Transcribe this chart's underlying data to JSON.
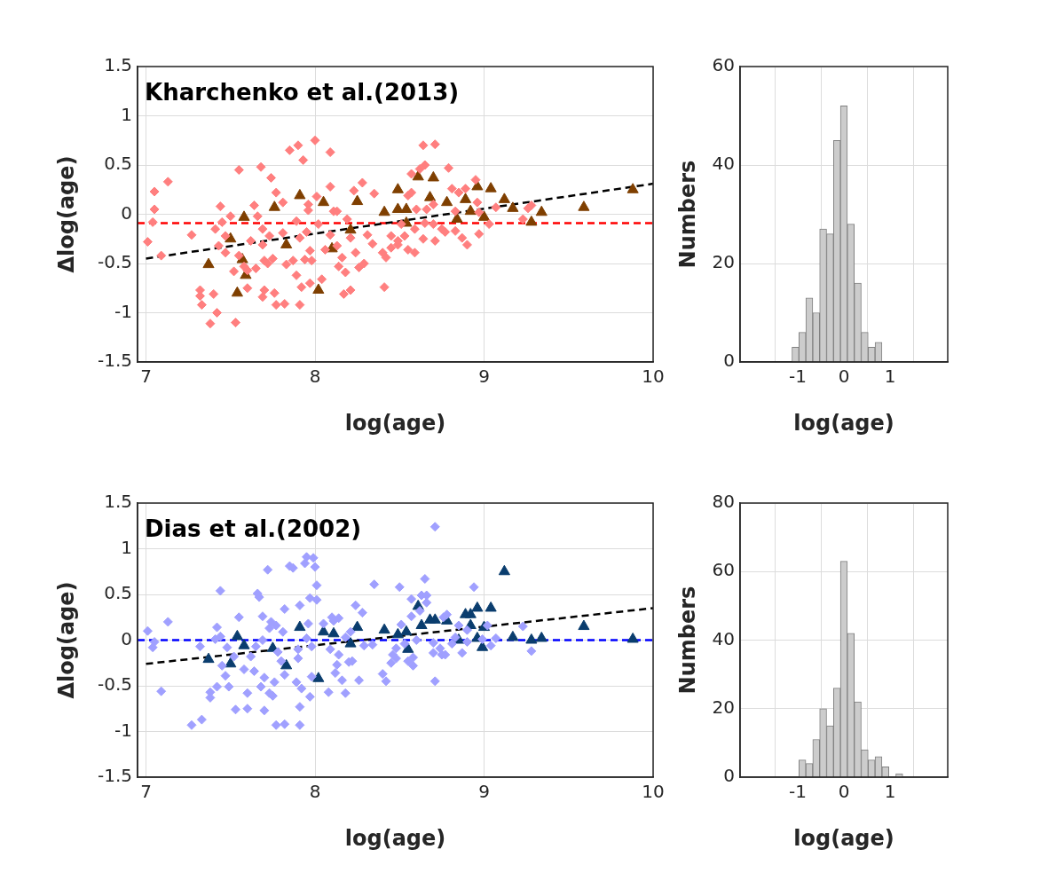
{
  "chart_data": [
    {
      "type": "scatter",
      "title": "Kharchenko et al.(2013)",
      "xlabel": "log(age)",
      "ylabel": "Δlog(age)",
      "xlim": [
        6.95,
        10
      ],
      "xticks": [
        7,
        8,
        9,
        10
      ],
      "ylim": [
        -1.5,
        1.5
      ],
      "yticks": [
        -1.5,
        -1,
        -0.5,
        0,
        0.5,
        1,
        1.5
      ],
      "grid": true,
      "series": [
        {
          "color": "#ff7f7f",
          "marker": "diamond",
          "x": [
            7.01,
            7.04,
            7.05,
            7.05,
            7.09,
            7.13,
            7.27,
            7.32,
            7.32,
            7.33,
            7.38,
            7.4,
            7.42,
            7.41,
            7.44,
            7.43,
            7.45,
            7.47,
            7.47,
            7.5,
            7.52,
            7.53,
            7.55,
            7.55,
            7.58,
            7.6,
            7.6,
            7.62,
            7.64,
            7.65,
            7.66,
            7.68,
            7.69,
            7.69,
            7.7,
            7.7,
            7.69,
            7.72,
            7.73,
            7.74,
            7.75,
            7.76,
            7.77,
            7.77,
            7.81,
            7.81,
            7.82,
            7.83,
            7.85,
            7.87,
            7.89,
            7.89,
            7.9,
            7.91,
            7.91,
            7.92,
            7.93,
            7.94,
            7.95,
            7.96,
            7.96,
            7.97,
            7.97,
            7.98,
            8.0,
            8.01,
            8.02,
            8.04,
            8.06,
            8.09,
            8.09,
            8.09,
            8.11,
            8.13,
            8.13,
            8.14,
            8.16,
            8.17,
            8.18,
            8.19,
            8.21,
            8.21,
            8.23,
            8.24,
            8.26,
            8.28,
            8.29,
            8.31,
            8.34,
            8.35,
            8.4,
            8.41,
            8.42,
            8.45,
            8.45,
            8.49,
            8.49,
            8.51,
            8.53,
            8.55,
            8.55,
            8.57,
            8.57,
            8.59,
            8.59,
            8.6,
            8.62,
            8.64,
            8.64,
            8.65,
            8.65,
            8.66,
            8.7,
            8.71,
            8.71,
            8.7,
            8.75,
            8.77,
            8.79,
            8.81,
            8.83,
            8.83,
            8.85,
            8.87,
            8.89,
            8.9,
            8.95,
            8.96,
            8.97,
            8.97,
            9.03,
            9.07,
            9.23,
            9.26,
            9.28
          ],
          "values": [
            -0.28,
            -0.08,
            0.05,
            0.23,
            -0.42,
            0.33,
            -0.21,
            -0.77,
            -0.83,
            -0.92,
            -1.11,
            -0.81,
            -1.0,
            -0.15,
            0.08,
            -0.32,
            -0.08,
            -0.39,
            -0.22,
            -0.02,
            -0.58,
            -1.1,
            0.45,
            -0.42,
            -0.53,
            -0.75,
            -0.57,
            -0.27,
            0.09,
            -0.55,
            -0.02,
            0.48,
            -0.15,
            -0.31,
            -0.47,
            -0.77,
            -0.84,
            -0.5,
            -0.22,
            0.37,
            -0.45,
            -0.8,
            -0.92,
            0.22,
            -0.19,
            0.12,
            -0.91,
            -0.51,
            0.65,
            -0.47,
            -0.62,
            -0.07,
            0.7,
            -0.92,
            -0.24,
            -0.74,
            0.55,
            -0.46,
            -0.18,
            0.1,
            0.04,
            -0.7,
            -0.37,
            -0.47,
            0.75,
            0.18,
            -0.1,
            -0.66,
            -0.36,
            0.63,
            0.28,
            -0.21,
            0.03,
            -0.32,
            0.03,
            -0.53,
            -0.44,
            -0.81,
            -0.59,
            -0.05,
            -0.77,
            -0.24,
            0.24,
            -0.39,
            -0.54,
            0.32,
            -0.5,
            -0.21,
            -0.3,
            0.21,
            -0.39,
            -0.74,
            -0.44,
            -0.22,
            -0.34,
            -0.31,
            -0.27,
            -0.1,
            -0.22,
            -0.36,
            0.19,
            0.22,
            0.41,
            -0.15,
            -0.39,
            0.05,
            0.46,
            0.7,
            -0.25,
            -0.09,
            0.5,
            0.05,
            -0.1,
            0.71,
            -0.27,
            0.1,
            -0.15,
            -0.18,
            0.47,
            0.26,
            0.03,
            -0.17,
            0.22,
            -0.24,
            0.26,
            -0.31,
            0.35,
            0.12,
            0.02,
            -0.2,
            -0.1,
            0.07,
            -0.05,
            0.06,
            0.09
          ]
        },
        {
          "color": "#7f3f00",
          "marker": "triangle",
          "x": [
            7.37,
            7.5,
            7.54,
            7.57,
            7.58,
            7.59,
            7.76,
            7.83,
            7.91,
            8.02,
            8.05,
            8.1,
            8.21,
            8.25,
            8.41,
            8.49,
            8.49,
            8.54,
            8.54,
            8.61,
            8.7,
            8.68,
            8.78,
            8.84,
            8.89,
            8.96,
            8.92,
            9.0,
            9.04,
            9.12,
            9.17,
            9.28,
            9.34,
            9.59,
            9.88
          ],
          "values": [
            -0.51,
            -0.25,
            -0.8,
            -0.46,
            -0.03,
            -0.62,
            0.07,
            -0.31,
            0.19,
            -0.77,
            0.12,
            -0.35,
            -0.16,
            0.13,
            0.02,
            0.25,
            0.05,
            0.05,
            -0.09,
            0.38,
            0.37,
            0.17,
            0.12,
            -0.05,
            0.15,
            0.28,
            0.03,
            -0.03,
            0.26,
            0.15,
            0.06,
            -0.08,
            0.02,
            0.07,
            0.25
          ]
        },
        {
          "type": "line",
          "color": "#000000",
          "marker": "none",
          "line_style": "dashed",
          "x": [
            7,
            10
          ],
          "values": [
            -0.45,
            0.31
          ]
        }
      ],
      "ref_lines": [
        {
          "axis": "y",
          "value": -0.09,
          "color": "#ff0000",
          "line_style": "dashed"
        }
      ]
    },
    {
      "type": "histogram",
      "xlabel": "log(age)",
      "ylabel": "Numbers",
      "xlim": [
        -1.5,
        1.5
      ],
      "xticks": [
        -1,
        0,
        1
      ],
      "ylim": [
        0,
        60
      ],
      "yticks": [
        0,
        20,
        40,
        60
      ],
      "grid": true,
      "color": "#cccccc",
      "bins": [
        -1.125,
        -0.975,
        -0.825,
        -0.675,
        -0.525,
        -0.375,
        -0.225,
        -0.075,
        0.075,
        0.225,
        0.375,
        0.525,
        0.675,
        0.825
      ],
      "values": [
        3,
        6,
        13,
        10,
        27,
        26,
        45,
        52,
        28,
        16,
        6,
        3,
        4
      ]
    },
    {
      "type": "scatter",
      "title": "Dias et al.(2002)",
      "xlabel": "log(age)",
      "ylabel": "Δlog(age)",
      "xlim": [
        6.95,
        10
      ],
      "xticks": [
        7,
        8,
        9,
        10
      ],
      "ylim": [
        -1.5,
        1.5
      ],
      "yticks": [
        -1.5,
        -1,
        -0.5,
        0,
        0.5,
        1,
        1.5
      ],
      "grid": true,
      "series": [
        {
          "color": "#a0a0ff",
          "marker": "diamond",
          "x": [
            7.01,
            7.04,
            7.05,
            7.09,
            7.13,
            7.27,
            7.33,
            7.32,
            7.38,
            7.38,
            7.41,
            7.42,
            7.42,
            7.44,
            7.44,
            7.45,
            7.47,
            7.48,
            7.49,
            7.52,
            7.53,
            7.55,
            7.58,
            7.6,
            7.6,
            7.62,
            7.64,
            7.65,
            7.66,
            7.67,
            7.68,
            7.69,
            7.69,
            7.7,
            7.7,
            7.72,
            7.73,
            7.73,
            7.75,
            7.74,
            7.76,
            7.77,
            7.77,
            7.78,
            7.8,
            7.81,
            7.82,
            7.82,
            7.82,
            7.85,
            7.87,
            7.89,
            7.9,
            7.9,
            7.91,
            7.91,
            7.91,
            7.92,
            7.94,
            7.95,
            7.95,
            7.96,
            7.97,
            7.97,
            7.98,
            7.99,
            8.0,
            8.01,
            8.01,
            7.98,
            8.05,
            8.08,
            8.09,
            8.1,
            8.11,
            8.12,
            8.13,
            8.14,
            8.14,
            8.16,
            8.18,
            8.18,
            8.2,
            8.21,
            8.22,
            8.24,
            8.26,
            8.28,
            8.29,
            8.34,
            8.35,
            8.4,
            8.42,
            8.45,
            8.46,
            8.48,
            8.48,
            8.5,
            8.51,
            8.53,
            8.55,
            8.57,
            8.57,
            8.58,
            8.58,
            8.6,
            8.62,
            8.63,
            8.65,
            8.66,
            8.66,
            8.7,
            8.7,
            8.71,
            8.71,
            8.74,
            8.75,
            8.76,
            8.77,
            8.78,
            8.81,
            8.83,
            8.85,
            8.87,
            8.9,
            8.9,
            8.94,
            8.99,
            9.02,
            9.04,
            9.07,
            9.23,
            9.28
          ],
          "values": [
            0.1,
            -0.08,
            -0.02,
            -0.56,
            0.2,
            -0.93,
            -0.87,
            -0.07,
            -0.63,
            -0.57,
            0.01,
            -0.51,
            0.14,
            0.54,
            0.04,
            -0.28,
            -0.39,
            -0.08,
            -0.51,
            -0.18,
            -0.76,
            0.25,
            -0.32,
            -0.75,
            -0.58,
            -0.18,
            -0.34,
            -0.07,
            0.51,
            0.47,
            -0.51,
            0.26,
            0.0,
            -0.77,
            -0.41,
            0.77,
            -0.58,
            0.13,
            -0.61,
            0.2,
            -0.46,
            -0.93,
            0.16,
            -0.13,
            -0.23,
            0.09,
            -0.38,
            0.34,
            -0.92,
            0.81,
            0.79,
            -0.46,
            -0.1,
            -0.2,
            0.38,
            -0.93,
            -0.73,
            -0.53,
            0.84,
            0.91,
            0.02,
            0.18,
            -0.62,
            0.46,
            -0.07,
            0.9,
            0.8,
            0.6,
            0.44,
            -0.4,
            0.18,
            -0.57,
            -0.1,
            0.25,
            0.21,
            -0.36,
            -0.27,
            -0.16,
            0.24,
            -0.44,
            -0.58,
            0.03,
            -0.24,
            0.09,
            -0.23,
            0.38,
            -0.44,
            0.3,
            -0.06,
            -0.05,
            0.61,
            -0.37,
            -0.45,
            -0.25,
            -0.16,
            -0.09,
            -0.2,
            0.58,
            0.17,
            -0.04,
            -0.23,
            0.45,
            0.26,
            -0.28,
            -0.19,
            0.0,
            0.32,
            0.49,
            0.67,
            0.49,
            0.41,
            -0.03,
            -0.14,
            -0.45,
            1.24,
            -0.09,
            -0.16,
            0.25,
            -0.16,
            0.28,
            -0.04,
            0.03,
            0.16,
            -0.14,
            -0.02,
            0.11,
            0.58,
            0.01,
            0.16,
            -0.06,
            0.02,
            0.15,
            -0.12
          ]
        },
        {
          "color": "#0a3d6e",
          "marker": "triangle",
          "x": [
            7.37,
            7.5,
            7.54,
            7.58,
            7.75,
            7.83,
            7.91,
            8.02,
            8.05,
            8.11,
            8.21,
            8.25,
            8.41,
            8.49,
            8.54,
            8.55,
            8.61,
            8.63,
            8.68,
            8.71,
            8.78,
            8.85,
            8.89,
            8.92,
            8.92,
            8.96,
            8.96,
            9.0,
            8.99,
            9.04,
            9.12,
            9.17,
            9.28,
            9.34,
            9.59,
            9.88
          ],
          "values": [
            -0.21,
            -0.26,
            0.04,
            -0.06,
            -0.09,
            -0.28,
            0.14,
            -0.42,
            0.09,
            0.07,
            -0.04,
            0.14,
            0.11,
            0.06,
            0.09,
            -0.1,
            0.37,
            0.16,
            0.22,
            0.22,
            0.21,
            0.0,
            0.28,
            0.28,
            0.16,
            0.35,
            0.02,
            0.14,
            -0.08,
            0.35,
            0.75,
            0.03,
            0.0,
            0.02,
            0.15,
            0.01
          ]
        },
        {
          "type": "line",
          "color": "#000000",
          "marker": "none",
          "line_style": "dashed",
          "x": [
            7,
            10
          ],
          "values": [
            -0.26,
            0.35
          ]
        }
      ],
      "ref_lines": [
        {
          "axis": "y",
          "value": 0,
          "color": "#0000ff",
          "line_style": "dashed"
        }
      ]
    },
    {
      "type": "histogram",
      "xlabel": "log(age)",
      "ylabel": "Numbers",
      "xlim": [
        -1.5,
        1.5
      ],
      "xticks": [
        -1,
        0,
        1
      ],
      "ylim": [
        0,
        80
      ],
      "yticks": [
        0,
        20,
        40,
        60,
        80
      ],
      "grid": true,
      "color": "#cccccc",
      "bins": [
        -0.975,
        -0.825,
        -0.675,
        -0.525,
        -0.375,
        -0.225,
        -0.075,
        0.075,
        0.225,
        0.375,
        0.525,
        0.675,
        0.825,
        0.975,
        1.125,
        1.275
      ],
      "values": [
        5,
        4,
        11,
        20,
        15,
        26,
        63,
        42,
        22,
        8,
        5,
        6,
        3,
        0,
        1
      ]
    }
  ]
}
